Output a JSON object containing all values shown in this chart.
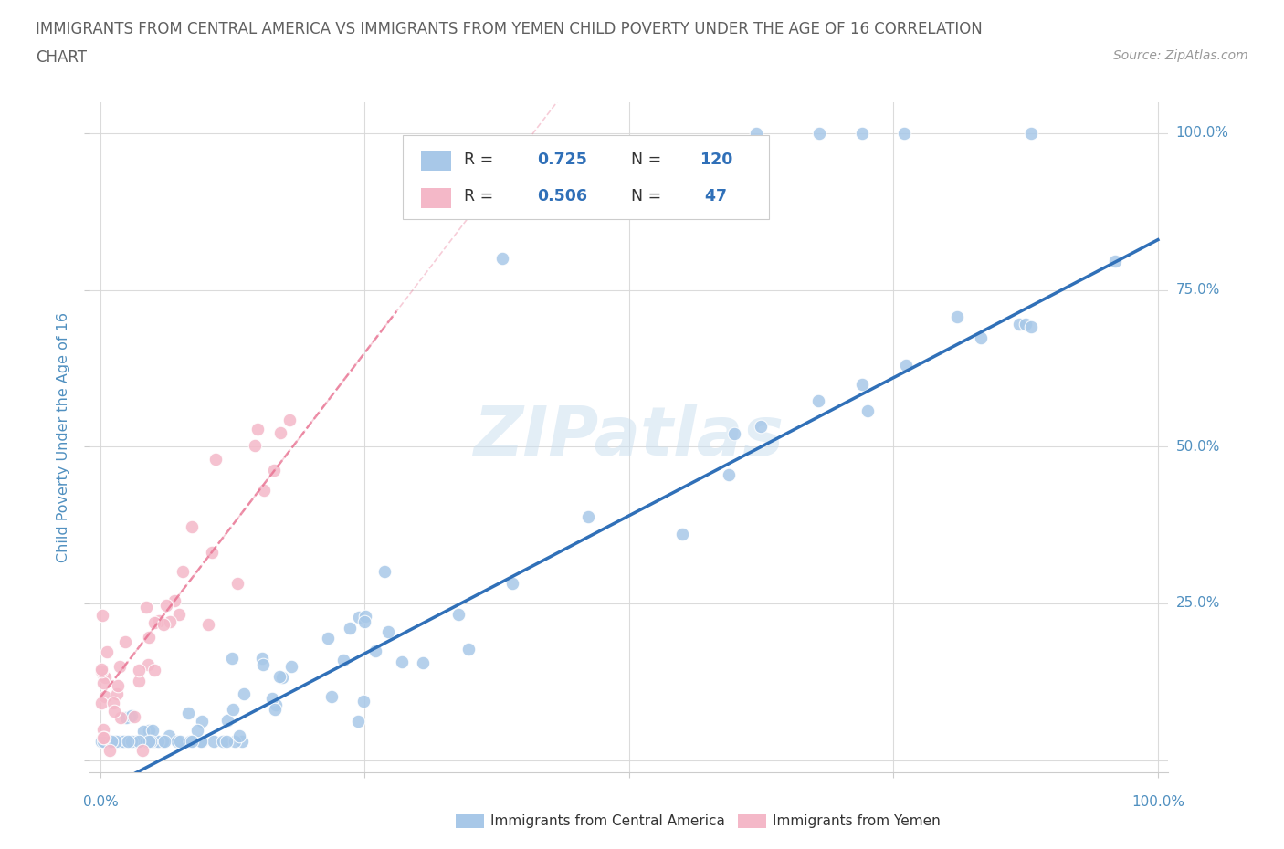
{
  "title_line1": "IMMIGRANTS FROM CENTRAL AMERICA VS IMMIGRANTS FROM YEMEN CHILD POVERTY UNDER THE AGE OF 16 CORRELATION",
  "title_line2": "CHART",
  "source": "Source: ZipAtlas.com",
  "ylabel": "Child Poverty Under the Age of 16",
  "blue_R": 0.725,
  "blue_N": 120,
  "pink_R": 0.506,
  "pink_N": 47,
  "blue_color": "#a8c8e8",
  "pink_color": "#f4b8c8",
  "blue_line_color": "#3070b8",
  "pink_line_color": "#e87090",
  "watermark": "ZIPatlas",
  "legend_label_blue": "Immigrants from Central America",
  "legend_label_pink": "Immigrants from Yemen",
  "background_color": "#ffffff",
  "grid_color": "#d8d8d8",
  "title_color": "#606060",
  "axis_label_color": "#5090c0",
  "tick_label_color": "#5090c0",
  "blue_line_slope": 0.88,
  "blue_line_intercept": -0.05,
  "pink_line_slope": 2.2,
  "pink_line_intercept": 0.1
}
